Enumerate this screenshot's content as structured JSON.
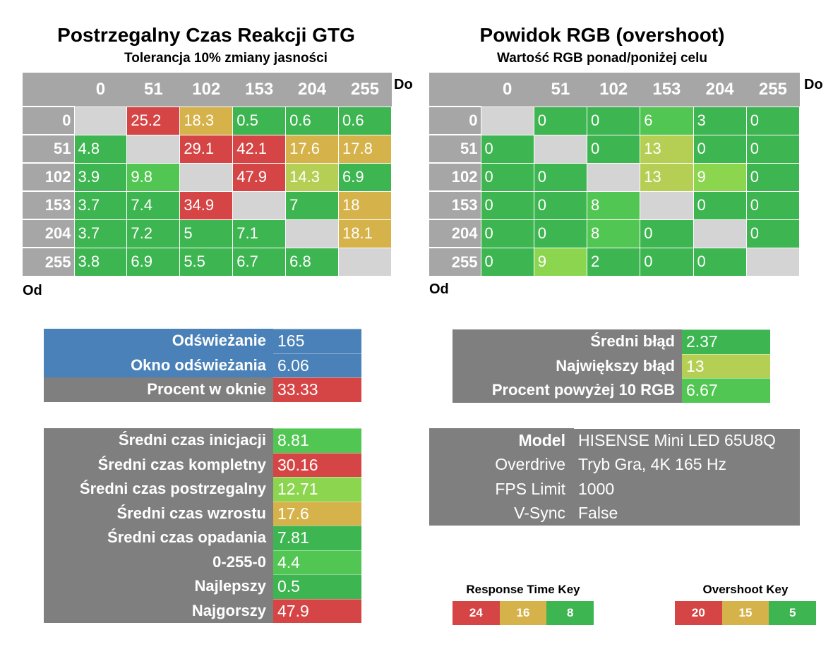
{
  "colors": {
    "gray_header": "#a6a6a6",
    "gray_panel": "#7f7f7f",
    "blue_panel": "#4a81b8",
    "diag": "#d4d4d4",
    "green": "#3db551",
    "bright_green": "#52c653",
    "light_green": "#8cd54f",
    "yellow_green": "#b5cf54",
    "tan": "#d6b24a",
    "red": "#d64545"
  },
  "response": {
    "title": "Postrzegalny Czas Reakcji GTG",
    "subtitle": "Tolerancja 10% zmiany jasności",
    "to_label": "Do",
    "from_label": "Od"
  },
  "overshoot": {
    "title": "Powidok RGB (overshoot)",
    "subtitle": "Wartość RGB ponad/poniżej celu",
    "to_label": "Do",
    "from_label": "Od"
  },
  "chart_data": [
    {
      "type": "heatmap",
      "title": "Postrzegalny Czas Reakcji GTG",
      "subtitle": "Tolerancja 10% zmiany jasności",
      "xlabel": "Do",
      "ylabel": "Od",
      "x": [
        "0",
        "51",
        "102",
        "153",
        "204",
        "255"
      ],
      "y": [
        "0",
        "51",
        "102",
        "153",
        "204",
        "255"
      ],
      "values": [
        [
          null,
          "25.2",
          "18.3",
          "0.5",
          "0.6",
          "0.6"
        ],
        [
          "4.8",
          null,
          "29.1",
          "42.1",
          "17.6",
          "17.8"
        ],
        [
          "3.9",
          "9.8",
          null,
          "47.9",
          "14.3",
          "6.9"
        ],
        [
          "3.7",
          "7.4",
          "34.9",
          null,
          "7",
          "18"
        ],
        [
          "3.7",
          "7.2",
          "5",
          "7.1",
          null,
          "18.1"
        ],
        [
          "3.8",
          "6.9",
          "5.5",
          "6.7",
          "6.8",
          null
        ]
      ],
      "cell_colors": [
        [
          "diag",
          "red",
          "tan",
          "green",
          "green",
          "green"
        ],
        [
          "green",
          "diag",
          "red",
          "red",
          "tan",
          "tan"
        ],
        [
          "green",
          "bright_green",
          "diag",
          "red",
          "yellow_green",
          "green"
        ],
        [
          "green",
          "green",
          "red",
          "diag",
          "green",
          "tan"
        ],
        [
          "green",
          "green",
          "green",
          "green",
          "diag",
          "tan"
        ],
        [
          "green",
          "green",
          "green",
          "green",
          "green",
          "diag"
        ]
      ]
    },
    {
      "type": "heatmap",
      "title": "Powidok RGB (overshoot)",
      "subtitle": "Wartość RGB ponad/poniżej celu",
      "xlabel": "Do",
      "ylabel": "Od",
      "x": [
        "0",
        "51",
        "102",
        "153",
        "204",
        "255"
      ],
      "y": [
        "0",
        "51",
        "102",
        "153",
        "204",
        "255"
      ],
      "values": [
        [
          null,
          "0",
          "0",
          "6",
          "3",
          "0"
        ],
        [
          "0",
          null,
          "0",
          "13",
          "0",
          "0"
        ],
        [
          "0",
          "0",
          null,
          "13",
          "9",
          "0"
        ],
        [
          "0",
          "0",
          "8",
          null,
          "0",
          "0"
        ],
        [
          "0",
          "0",
          "8",
          "0",
          null,
          "0"
        ],
        [
          "0",
          "9",
          "2",
          "0",
          "0",
          null
        ]
      ],
      "cell_colors": [
        [
          "diag",
          "green",
          "green",
          "bright_green",
          "green",
          "green"
        ],
        [
          "green",
          "diag",
          "green",
          "yellow_green",
          "green",
          "green"
        ],
        [
          "green",
          "green",
          "diag",
          "yellow_green",
          "light_green",
          "green"
        ],
        [
          "green",
          "green",
          "bright_green",
          "diag",
          "green",
          "green"
        ],
        [
          "green",
          "green",
          "bright_green",
          "green",
          "diag",
          "green"
        ],
        [
          "green",
          "light_green",
          "green",
          "green",
          "green",
          "diag"
        ]
      ]
    }
  ],
  "refresh_panel": {
    "rows": [
      {
        "label": "Odświeżanie",
        "value": "165",
        "bg": "blue_panel",
        "val_bg": "blue_panel"
      },
      {
        "label": "Okno odświeżania",
        "value": "6.06",
        "bg": "blue_panel",
        "val_bg": "blue_panel"
      },
      {
        "label": "Procent w oknie",
        "value": "33.33",
        "bg": "gray_panel",
        "val_bg": "red"
      }
    ]
  },
  "error_panel": {
    "rows": [
      {
        "label": "Średni błąd",
        "value": "2.37",
        "val_bg": "green"
      },
      {
        "label": "Największy błąd",
        "value": "13",
        "val_bg": "yellow_green"
      },
      {
        "label": "Procent powyżej 10 RGB",
        "value": "6.67",
        "val_bg": "bright_green"
      }
    ]
  },
  "stats_panel": {
    "rows": [
      {
        "label": "Średni czas inicjacji",
        "value": "8.81",
        "val_bg": "bright_green"
      },
      {
        "label": "Średni czas kompletny",
        "value": "30.16",
        "val_bg": "red"
      },
      {
        "label": "Średni czas postrzegalny",
        "value": "12.71",
        "val_bg": "light_green"
      },
      {
        "label": "Średni czas wzrostu",
        "value": "17.6",
        "val_bg": "tan"
      },
      {
        "label": "Średni czas opadania",
        "value": "7.81",
        "val_bg": "green"
      },
      {
        "label": "0-255-0",
        "value": "4.4",
        "val_bg": "bright_green"
      },
      {
        "label": "Najlepszy",
        "value": "0.5",
        "val_bg": "green"
      },
      {
        "label": "Najgorszy",
        "value": "47.9",
        "val_bg": "red"
      }
    ]
  },
  "info_panel": {
    "rows": [
      {
        "label": "Model",
        "value": "HISENSE Mini LED 65U8Q",
        "bold": true
      },
      {
        "label": "Overdrive",
        "value": "Tryb Gra, 4K 165 Hz",
        "bold": false
      },
      {
        "label": "FPS Limit",
        "value": "1000",
        "bold": false
      },
      {
        "label": "V-Sync",
        "value": "False",
        "bold": false
      }
    ]
  },
  "response_key": {
    "title": "Response Time Key",
    "cells": [
      {
        "label": "24",
        "color": "red"
      },
      {
        "label": "16",
        "color": "tan"
      },
      {
        "label": "8",
        "color": "green"
      }
    ]
  },
  "overshoot_key": {
    "title": "Overshoot Key",
    "cells": [
      {
        "label": "20",
        "color": "red"
      },
      {
        "label": "15",
        "color": "tan"
      },
      {
        "label": "5",
        "color": "green"
      }
    ]
  }
}
